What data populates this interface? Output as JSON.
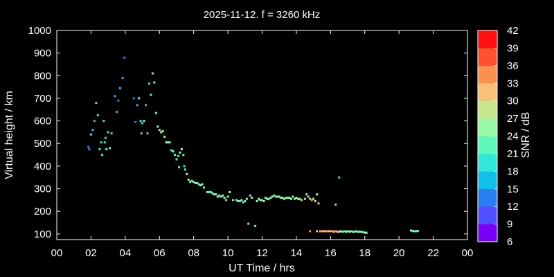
{
  "chart_data": {
    "type": "scatter",
    "title": "2025-11-12. f = 3260 kHz",
    "xlabel": "UT Time / hrs",
    "ylabel": "Virtual height / km",
    "colorbar_label": "SNR / dB",
    "xlim": [
      0,
      24
    ],
    "ylim": [
      75,
      1000
    ],
    "x_ticks": [
      "00",
      "02",
      "04",
      "06",
      "08",
      "10",
      "12",
      "14",
      "16",
      "18",
      "20",
      "22",
      "00"
    ],
    "y_ticks": [
      100,
      200,
      300,
      400,
      500,
      600,
      700,
      800,
      900,
      1000
    ],
    "colorbar": {
      "range": [
        6,
        42
      ],
      "ticks": [
        6,
        9,
        12,
        15,
        18,
        21,
        24,
        27,
        30,
        33,
        36,
        39,
        42
      ],
      "colors": [
        "#7a00f5",
        "#5050ff",
        "#2880f0",
        "#10c0e8",
        "#30e8d8",
        "#60f8b8",
        "#98f8a8",
        "#c8e890",
        "#f8c078",
        "#ff9050",
        "#ff5030",
        "#ff1010"
      ]
    },
    "points": [
      [
        1.85,
        485,
        14
      ],
      [
        1.9,
        475,
        14
      ],
      [
        2.0,
        540,
        20
      ],
      [
        2.1,
        560,
        16
      ],
      [
        2.2,
        600,
        17
      ],
      [
        2.3,
        680,
        18
      ],
      [
        2.4,
        625,
        20
      ],
      [
        2.5,
        475,
        19
      ],
      [
        2.6,
        505,
        18
      ],
      [
        2.65,
        450,
        20
      ],
      [
        2.75,
        600,
        19
      ],
      [
        2.8,
        505,
        18
      ],
      [
        2.85,
        525,
        20
      ],
      [
        2.9,
        475,
        21
      ],
      [
        3.0,
        550,
        18
      ],
      [
        3.1,
        480,
        21
      ],
      [
        3.2,
        545,
        20
      ],
      [
        3.4,
        710,
        16
      ],
      [
        3.5,
        640,
        16
      ],
      [
        3.6,
        690,
        14
      ],
      [
        3.7,
        745,
        15
      ],
      [
        3.85,
        790,
        15
      ],
      [
        3.95,
        880,
        12
      ],
      [
        4.5,
        700,
        14
      ],
      [
        4.6,
        595,
        14
      ],
      [
        4.7,
        670,
        17
      ],
      [
        4.8,
        700,
        21
      ],
      [
        4.9,
        600,
        19
      ],
      [
        4.95,
        545,
        20
      ],
      [
        5.0,
        590,
        18
      ],
      [
        5.1,
        600,
        21
      ],
      [
        5.2,
        670,
        17
      ],
      [
        5.3,
        545,
        18
      ],
      [
        5.4,
        765,
        20
      ],
      [
        5.5,
        715,
        21
      ],
      [
        5.6,
        810,
        21
      ],
      [
        5.7,
        770,
        23
      ],
      [
        5.8,
        635,
        23
      ],
      [
        5.9,
        575,
        24
      ],
      [
        6.0,
        560,
        24
      ],
      [
        6.1,
        550,
        24
      ],
      [
        6.2,
        555,
        25
      ],
      [
        6.3,
        530,
        24
      ],
      [
        6.4,
        505,
        24
      ],
      [
        6.5,
        505,
        24
      ],
      [
        6.6,
        505,
        23
      ],
      [
        6.7,
        470,
        23
      ],
      [
        6.8,
        465,
        24
      ],
      [
        6.9,
        450,
        23
      ],
      [
        7.0,
        430,
        21
      ],
      [
        7.1,
        445,
        20
      ],
      [
        7.15,
        395,
        19
      ],
      [
        7.2,
        460,
        24
      ],
      [
        7.3,
        475,
        24
      ],
      [
        7.4,
        450,
        21
      ],
      [
        7.45,
        400,
        20
      ],
      [
        7.5,
        385,
        21
      ],
      [
        7.6,
        365,
        24
      ],
      [
        7.7,
        340,
        24
      ],
      [
        7.8,
        330,
        24
      ],
      [
        7.9,
        335,
        23
      ],
      [
        8.0,
        330,
        24
      ],
      [
        8.1,
        325,
        23
      ],
      [
        8.2,
        325,
        24
      ],
      [
        8.3,
        320,
        23
      ],
      [
        8.4,
        315,
        24
      ],
      [
        8.5,
        320,
        24
      ],
      [
        8.6,
        305,
        23
      ],
      [
        8.8,
        285,
        23
      ],
      [
        8.9,
        285,
        23
      ],
      [
        9.0,
        285,
        22
      ],
      [
        9.1,
        280,
        24
      ],
      [
        9.2,
        275,
        24
      ],
      [
        9.3,
        275,
        23
      ],
      [
        9.4,
        265,
        24
      ],
      [
        9.5,
        270,
        25
      ],
      [
        9.6,
        265,
        24
      ],
      [
        9.7,
        270,
        24
      ],
      [
        9.8,
        260,
        24
      ],
      [
        9.9,
        250,
        23
      ],
      [
        10.0,
        265,
        24
      ],
      [
        10.1,
        285,
        24
      ],
      [
        10.3,
        250,
        22
      ],
      [
        10.5,
        250,
        24
      ],
      [
        10.6,
        245,
        23
      ],
      [
        10.7,
        245,
        22
      ],
      [
        10.8,
        250,
        23
      ],
      [
        10.9,
        240,
        22
      ],
      [
        11.0,
        245,
        23
      ],
      [
        11.1,
        255,
        24
      ],
      [
        11.2,
        145,
        21
      ],
      [
        11.3,
        270,
        23
      ],
      [
        11.4,
        260,
        24
      ],
      [
        11.6,
        135,
        21
      ],
      [
        11.7,
        245,
        24
      ],
      [
        11.8,
        255,
        25
      ],
      [
        11.9,
        250,
        24
      ],
      [
        12.0,
        250,
        23
      ],
      [
        12.1,
        245,
        24
      ],
      [
        12.2,
        260,
        25
      ],
      [
        12.3,
        255,
        24
      ],
      [
        12.4,
        255,
        23
      ],
      [
        12.5,
        260,
        24
      ],
      [
        12.6,
        265,
        24
      ],
      [
        12.7,
        270,
        25
      ],
      [
        12.8,
        265,
        23
      ],
      [
        12.9,
        265,
        24
      ],
      [
        13.0,
        265,
        25
      ],
      [
        13.1,
        260,
        24
      ],
      [
        13.2,
        260,
        24
      ],
      [
        13.3,
        255,
        25
      ],
      [
        13.4,
        260,
        24
      ],
      [
        13.5,
        260,
        24
      ],
      [
        13.6,
        260,
        24
      ],
      [
        13.7,
        255,
        25
      ],
      [
        13.8,
        265,
        24
      ],
      [
        13.9,
        255,
        24
      ],
      [
        14.0,
        260,
        24
      ],
      [
        14.1,
        255,
        25
      ],
      [
        14.2,
        255,
        24
      ],
      [
        14.3,
        250,
        24
      ],
      [
        14.5,
        255,
        24
      ],
      [
        14.6,
        275,
        25
      ],
      [
        14.7,
        265,
        24
      ],
      [
        14.8,
        255,
        30
      ],
      [
        14.9,
        250,
        33
      ],
      [
        15.0,
        255,
        24
      ],
      [
        15.1,
        245,
        24
      ],
      [
        15.2,
        275,
        25
      ],
      [
        15.3,
        235,
        31
      ],
      [
        14.8,
        112,
        34
      ],
      [
        15.2,
        112,
        31
      ],
      [
        15.4,
        112,
        32
      ],
      [
        15.5,
        112,
        33
      ],
      [
        15.6,
        112,
        32
      ],
      [
        15.7,
        112,
        31
      ],
      [
        15.8,
        112,
        33
      ],
      [
        15.9,
        112,
        30
      ],
      [
        16.0,
        112,
        31
      ],
      [
        16.1,
        112,
        33
      ],
      [
        16.2,
        110,
        32
      ],
      [
        16.3,
        112,
        35
      ],
      [
        16.4,
        110,
        30
      ],
      [
        16.5,
        110,
        27
      ],
      [
        16.6,
        112,
        24
      ],
      [
        16.7,
        110,
        23
      ],
      [
        16.8,
        112,
        22
      ],
      [
        16.9,
        110,
        24
      ],
      [
        17.0,
        112,
        22
      ],
      [
        17.1,
        110,
        24
      ],
      [
        17.2,
        112,
        21
      ],
      [
        17.3,
        110,
        23
      ],
      [
        17.4,
        110,
        24
      ],
      [
        17.5,
        112,
        22
      ],
      [
        17.6,
        110,
        23
      ],
      [
        17.7,
        110,
        24
      ],
      [
        17.8,
        110,
        22
      ],
      [
        17.9,
        108,
        23
      ],
      [
        18.0,
        106,
        24
      ],
      [
        18.1,
        105,
        25
      ],
      [
        16.3,
        230,
        21
      ],
      [
        16.5,
        350,
        20
      ],
      [
        20.7,
        115,
        24
      ],
      [
        20.8,
        113,
        23
      ],
      [
        20.9,
        112,
        22
      ],
      [
        21.0,
        112,
        23
      ],
      [
        21.1,
        113,
        24
      ]
    ]
  }
}
